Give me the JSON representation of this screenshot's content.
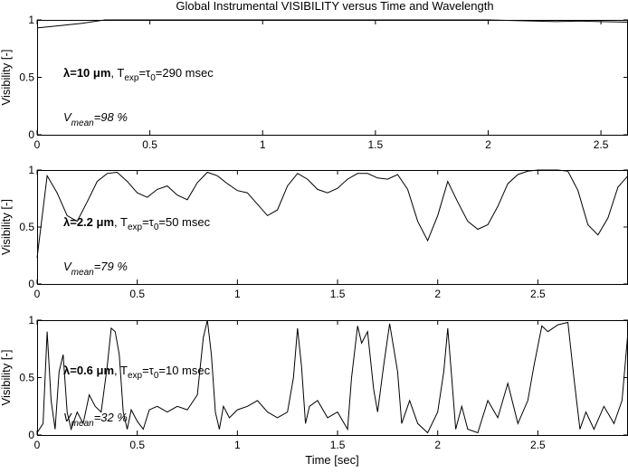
{
  "figure": {
    "title": "Global Instrumental VISIBILITY versus Time and Wavelength",
    "xlabel": "Time [sec]"
  },
  "chart_data": [
    {
      "type": "line",
      "ylabel": "Visibility [-]",
      "xlim": [
        0,
        2.62
      ],
      "ylim": [
        0,
        1
      ],
      "xticks": [
        0,
        0.5,
        1,
        1.5,
        2,
        2.5
      ],
      "xtick_labels": [
        "0",
        "0.5",
        "1",
        "1.5",
        "2",
        "2.5"
      ],
      "yticks": [
        0,
        0.5,
        1
      ],
      "ytick_labels": [
        "0",
        "0.5",
        "1"
      ],
      "annotation": {
        "lambda_sym": "λ",
        "lambda_value": "=10 μm",
        "mid": ", T",
        "exp": "exp",
        "eq": "=τ",
        "zero": "0",
        "rest": "=290 msec"
      },
      "mean": {
        "v": "V",
        "sub": "mean",
        "rest": "=98 %"
      },
      "x": [
        0,
        0.1,
        0.2,
        0.3,
        0.4,
        0.5,
        0.6,
        0.7,
        0.8,
        0.9,
        1.0,
        1.1,
        1.2,
        1.3,
        1.4,
        1.5,
        1.6,
        1.7,
        1.8,
        1.9,
        2.0,
        2.1,
        2.2,
        2.3,
        2.4,
        2.5,
        2.62
      ],
      "y": [
        0.93,
        0.95,
        0.97,
        1.0,
        1.0,
        1.0,
        1.0,
        1.0,
        1.0,
        1.0,
        1.0,
        1.0,
        1.0,
        1.0,
        1.0,
        1.0,
        1.0,
        1.0,
        1.0,
        1.0,
        1.0,
        0.995,
        0.99,
        0.985,
        0.99,
        0.985,
        0.98
      ]
    },
    {
      "type": "line",
      "ylabel": "Visibility [-]",
      "xlim": [
        0,
        2.95
      ],
      "ylim": [
        0,
        1
      ],
      "xticks": [
        0,
        0.5,
        1,
        1.5,
        2,
        2.5
      ],
      "xtick_labels": [
        "0",
        "0.5",
        "1",
        "1.5",
        "2",
        "2.5"
      ],
      "yticks": [
        0,
        0.5,
        1
      ],
      "ytick_labels": [
        "0",
        "0.5",
        "1"
      ],
      "annotation": {
        "lambda_sym": "λ",
        "lambda_value": "=2.2 μm",
        "mid": ", T",
        "exp": "exp",
        "eq": "=τ",
        "zero": "0",
        "rest": "=50 msec"
      },
      "mean": {
        "v": "V",
        "sub": "mean",
        "rest": "=79 %"
      },
      "x": [
        0,
        0.05,
        0.1,
        0.15,
        0.2,
        0.25,
        0.3,
        0.35,
        0.4,
        0.45,
        0.5,
        0.55,
        0.6,
        0.65,
        0.7,
        0.75,
        0.8,
        0.85,
        0.9,
        0.95,
        1.0,
        1.05,
        1.1,
        1.15,
        1.2,
        1.25,
        1.3,
        1.35,
        1.4,
        1.45,
        1.5,
        1.55,
        1.6,
        1.65,
        1.7,
        1.75,
        1.8,
        1.85,
        1.9,
        1.95,
        2.0,
        2.05,
        2.1,
        2.15,
        2.2,
        2.25,
        2.3,
        2.35,
        2.4,
        2.45,
        2.5,
        2.55,
        2.6,
        2.65,
        2.7,
        2.75,
        2.8,
        2.85,
        2.9,
        2.95
      ],
      "y": [
        0.23,
        0.95,
        0.8,
        0.6,
        0.55,
        0.72,
        0.9,
        0.97,
        0.98,
        0.9,
        0.8,
        0.76,
        0.83,
        0.86,
        0.78,
        0.74,
        0.89,
        0.98,
        0.95,
        0.88,
        0.82,
        0.8,
        0.7,
        0.6,
        0.65,
        0.86,
        0.97,
        0.92,
        0.83,
        0.8,
        0.84,
        0.92,
        0.97,
        0.97,
        0.93,
        0.92,
        0.96,
        0.83,
        0.55,
        0.38,
        0.6,
        0.9,
        0.72,
        0.55,
        0.48,
        0.52,
        0.68,
        0.88,
        0.96,
        0.99,
        1.0,
        1.0,
        1.0,
        0.99,
        0.82,
        0.52,
        0.43,
        0.58,
        0.85,
        0.95
      ]
    },
    {
      "type": "line",
      "ylabel": "Visibility [-]",
      "xlim": [
        0,
        2.95
      ],
      "ylim": [
        0,
        1
      ],
      "xticks": [
        0,
        0.5,
        1,
        1.5,
        2,
        2.5
      ],
      "xtick_labels": [
        "0",
        "0.5",
        "1",
        "1.5",
        "2",
        "2.5"
      ],
      "yticks": [
        0,
        0.5,
        1
      ],
      "ytick_labels": [
        "0",
        "0.5",
        "1"
      ],
      "annotation": {
        "lambda_sym": "λ",
        "lambda_value": "=0.6 μm",
        "mid": ", T",
        "exp": "exp",
        "eq": "=τ",
        "zero": "0",
        "rest": "=10 msec"
      },
      "mean": {
        "v": "V",
        "sub": "mean",
        "rest": "=32 %"
      },
      "x": [
        0,
        0.03,
        0.05,
        0.07,
        0.09,
        0.11,
        0.13,
        0.15,
        0.17,
        0.2,
        0.23,
        0.26,
        0.29,
        0.32,
        0.35,
        0.37,
        0.39,
        0.41,
        0.43,
        0.45,
        0.47,
        0.5,
        0.53,
        0.56,
        0.6,
        0.65,
        0.7,
        0.75,
        0.8,
        0.83,
        0.85,
        0.87,
        0.89,
        0.91,
        0.93,
        0.96,
        1.0,
        1.05,
        1.1,
        1.15,
        1.2,
        1.25,
        1.28,
        1.3,
        1.32,
        1.34,
        1.36,
        1.4,
        1.45,
        1.5,
        1.55,
        1.57,
        1.6,
        1.62,
        1.65,
        1.68,
        1.7,
        1.73,
        1.76,
        1.8,
        1.82,
        1.84,
        1.86,
        1.9,
        1.95,
        2.0,
        2.03,
        2.05,
        2.07,
        2.09,
        2.12,
        2.15,
        2.2,
        2.25,
        2.3,
        2.35,
        2.4,
        2.45,
        2.48,
        2.52,
        2.55,
        2.6,
        2.65,
        2.68,
        2.71,
        2.74,
        2.78,
        2.83,
        2.88,
        2.92,
        2.95
      ],
      "y": [
        0.02,
        0.1,
        0.9,
        0.3,
        0.05,
        0.55,
        0.7,
        0.2,
        0.05,
        0.2,
        0.1,
        0.35,
        0.25,
        0.2,
        0.6,
        0.93,
        0.9,
        0.7,
        0.2,
        0.05,
        0.22,
        0.12,
        0.05,
        0.22,
        0.25,
        0.2,
        0.25,
        0.22,
        0.35,
        0.85,
        1.0,
        0.7,
        0.2,
        0.05,
        0.25,
        0.15,
        0.22,
        0.25,
        0.3,
        0.2,
        0.15,
        0.2,
        0.5,
        0.93,
        0.6,
        0.1,
        0.25,
        0.3,
        0.15,
        0.2,
        0.05,
        0.5,
        0.95,
        0.8,
        0.9,
        0.4,
        0.2,
        0.6,
        0.97,
        0.55,
        0.1,
        0.2,
        0.3,
        0.1,
        0.02,
        0.2,
        0.55,
        0.93,
        0.5,
        0.05,
        0.25,
        0.05,
        0.02,
        0.3,
        0.15,
        0.45,
        0.1,
        0.3,
        0.6,
        0.95,
        0.9,
        0.96,
        0.98,
        0.5,
        0.05,
        0.2,
        0.05,
        0.25,
        0.1,
        0.3,
        0.9
      ]
    }
  ]
}
